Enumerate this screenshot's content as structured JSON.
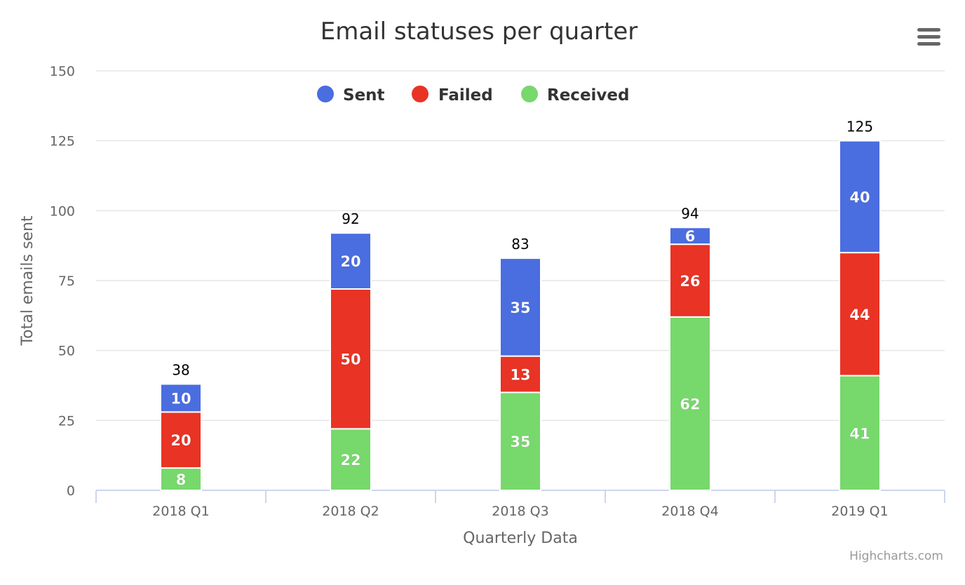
{
  "chart_data": {
    "type": "bar",
    "stacked": true,
    "title": "Email statuses per quarter",
    "xlabel": "Quarterly Data",
    "ylabel": "Total emails sent",
    "categories": [
      "2018 Q1",
      "2018 Q2",
      "2018 Q3",
      "2018 Q4",
      "2019 Q1"
    ],
    "ylim": [
      0,
      150
    ],
    "yticks": [
      0,
      25,
      50,
      75,
      100,
      125,
      150
    ],
    "grid": true,
    "legend_position": "top-center",
    "series": [
      {
        "name": "Sent",
        "color": "#4a6de0",
        "values": [
          10,
          20,
          35,
          6,
          40
        ]
      },
      {
        "name": "Failed",
        "color": "#e83325",
        "values": [
          20,
          50,
          13,
          26,
          44
        ]
      },
      {
        "name": "Received",
        "color": "#77d86c",
        "values": [
          8,
          22,
          35,
          62,
          41
        ]
      }
    ],
    "stack_order_bottom_to_top": [
      "Received",
      "Failed",
      "Sent"
    ],
    "totals": [
      38,
      92,
      83,
      94,
      125
    ]
  },
  "credits": "Highcharts.com",
  "menu": {
    "icon": "hamburger-menu-icon"
  }
}
